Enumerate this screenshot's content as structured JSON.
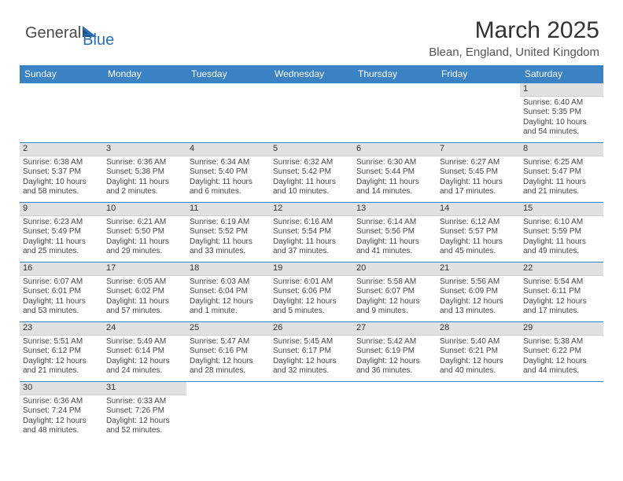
{
  "logo": {
    "text1": "General",
    "text2": "Blue"
  },
  "title": "March 2025",
  "location": "Blean, England, United Kingdom",
  "colors": {
    "header_bg": "#3b82c4",
    "header_text": "#ffffff",
    "daynum_bg": "#e1e1e1",
    "border": "#3b82c4",
    "logo_gray": "#4a4a4a",
    "logo_blue": "#2a6fb5"
  },
  "dayHeaders": [
    "Sunday",
    "Monday",
    "Tuesday",
    "Wednesday",
    "Thursday",
    "Friday",
    "Saturday"
  ],
  "weeks": [
    [
      null,
      null,
      null,
      null,
      null,
      null,
      {
        "n": "1",
        "sr": "Sunrise: 6:40 AM",
        "ss": "Sunset: 5:35 PM",
        "d1": "Daylight: 10 hours",
        "d2": "and 54 minutes."
      }
    ],
    [
      {
        "n": "2",
        "sr": "Sunrise: 6:38 AM",
        "ss": "Sunset: 5:37 PM",
        "d1": "Daylight: 10 hours",
        "d2": "and 58 minutes."
      },
      {
        "n": "3",
        "sr": "Sunrise: 6:36 AM",
        "ss": "Sunset: 5:38 PM",
        "d1": "Daylight: 11 hours",
        "d2": "and 2 minutes."
      },
      {
        "n": "4",
        "sr": "Sunrise: 6:34 AM",
        "ss": "Sunset: 5:40 PM",
        "d1": "Daylight: 11 hours",
        "d2": "and 6 minutes."
      },
      {
        "n": "5",
        "sr": "Sunrise: 6:32 AM",
        "ss": "Sunset: 5:42 PM",
        "d1": "Daylight: 11 hours",
        "d2": "and 10 minutes."
      },
      {
        "n": "6",
        "sr": "Sunrise: 6:30 AM",
        "ss": "Sunset: 5:44 PM",
        "d1": "Daylight: 11 hours",
        "d2": "and 14 minutes."
      },
      {
        "n": "7",
        "sr": "Sunrise: 6:27 AM",
        "ss": "Sunset: 5:45 PM",
        "d1": "Daylight: 11 hours",
        "d2": "and 17 minutes."
      },
      {
        "n": "8",
        "sr": "Sunrise: 6:25 AM",
        "ss": "Sunset: 5:47 PM",
        "d1": "Daylight: 11 hours",
        "d2": "and 21 minutes."
      }
    ],
    [
      {
        "n": "9",
        "sr": "Sunrise: 6:23 AM",
        "ss": "Sunset: 5:49 PM",
        "d1": "Daylight: 11 hours",
        "d2": "and 25 minutes."
      },
      {
        "n": "10",
        "sr": "Sunrise: 6:21 AM",
        "ss": "Sunset: 5:50 PM",
        "d1": "Daylight: 11 hours",
        "d2": "and 29 minutes."
      },
      {
        "n": "11",
        "sr": "Sunrise: 6:19 AM",
        "ss": "Sunset: 5:52 PM",
        "d1": "Daylight: 11 hours",
        "d2": "and 33 minutes."
      },
      {
        "n": "12",
        "sr": "Sunrise: 6:16 AM",
        "ss": "Sunset: 5:54 PM",
        "d1": "Daylight: 11 hours",
        "d2": "and 37 minutes."
      },
      {
        "n": "13",
        "sr": "Sunrise: 6:14 AM",
        "ss": "Sunset: 5:56 PM",
        "d1": "Daylight: 11 hours",
        "d2": "and 41 minutes."
      },
      {
        "n": "14",
        "sr": "Sunrise: 6:12 AM",
        "ss": "Sunset: 5:57 PM",
        "d1": "Daylight: 11 hours",
        "d2": "and 45 minutes."
      },
      {
        "n": "15",
        "sr": "Sunrise: 6:10 AM",
        "ss": "Sunset: 5:59 PM",
        "d1": "Daylight: 11 hours",
        "d2": "and 49 minutes."
      }
    ],
    [
      {
        "n": "16",
        "sr": "Sunrise: 6:07 AM",
        "ss": "Sunset: 6:01 PM",
        "d1": "Daylight: 11 hours",
        "d2": "and 53 minutes."
      },
      {
        "n": "17",
        "sr": "Sunrise: 6:05 AM",
        "ss": "Sunset: 6:02 PM",
        "d1": "Daylight: 11 hours",
        "d2": "and 57 minutes."
      },
      {
        "n": "18",
        "sr": "Sunrise: 6:03 AM",
        "ss": "Sunset: 6:04 PM",
        "d1": "Daylight: 12 hours",
        "d2": "and 1 minute."
      },
      {
        "n": "19",
        "sr": "Sunrise: 6:01 AM",
        "ss": "Sunset: 6:06 PM",
        "d1": "Daylight: 12 hours",
        "d2": "and 5 minutes."
      },
      {
        "n": "20",
        "sr": "Sunrise: 5:58 AM",
        "ss": "Sunset: 6:07 PM",
        "d1": "Daylight: 12 hours",
        "d2": "and 9 minutes."
      },
      {
        "n": "21",
        "sr": "Sunrise: 5:56 AM",
        "ss": "Sunset: 6:09 PM",
        "d1": "Daylight: 12 hours",
        "d2": "and 13 minutes."
      },
      {
        "n": "22",
        "sr": "Sunrise: 5:54 AM",
        "ss": "Sunset: 6:11 PM",
        "d1": "Daylight: 12 hours",
        "d2": "and 17 minutes."
      }
    ],
    [
      {
        "n": "23",
        "sr": "Sunrise: 5:51 AM",
        "ss": "Sunset: 6:12 PM",
        "d1": "Daylight: 12 hours",
        "d2": "and 21 minutes."
      },
      {
        "n": "24",
        "sr": "Sunrise: 5:49 AM",
        "ss": "Sunset: 6:14 PM",
        "d1": "Daylight: 12 hours",
        "d2": "and 24 minutes."
      },
      {
        "n": "25",
        "sr": "Sunrise: 5:47 AM",
        "ss": "Sunset: 6:16 PM",
        "d1": "Daylight: 12 hours",
        "d2": "and 28 minutes."
      },
      {
        "n": "26",
        "sr": "Sunrise: 5:45 AM",
        "ss": "Sunset: 6:17 PM",
        "d1": "Daylight: 12 hours",
        "d2": "and 32 minutes."
      },
      {
        "n": "27",
        "sr": "Sunrise: 5:42 AM",
        "ss": "Sunset: 6:19 PM",
        "d1": "Daylight: 12 hours",
        "d2": "and 36 minutes."
      },
      {
        "n": "28",
        "sr": "Sunrise: 5:40 AM",
        "ss": "Sunset: 6:21 PM",
        "d1": "Daylight: 12 hours",
        "d2": "and 40 minutes."
      },
      {
        "n": "29",
        "sr": "Sunrise: 5:38 AM",
        "ss": "Sunset: 6:22 PM",
        "d1": "Daylight: 12 hours",
        "d2": "and 44 minutes."
      }
    ],
    [
      {
        "n": "30",
        "sr": "Sunrise: 6:36 AM",
        "ss": "Sunset: 7:24 PM",
        "d1": "Daylight: 12 hours",
        "d2": "and 48 minutes."
      },
      {
        "n": "31",
        "sr": "Sunrise: 6:33 AM",
        "ss": "Sunset: 7:26 PM",
        "d1": "Daylight: 12 hours",
        "d2": "and 52 minutes."
      },
      null,
      null,
      null,
      null,
      null
    ]
  ]
}
